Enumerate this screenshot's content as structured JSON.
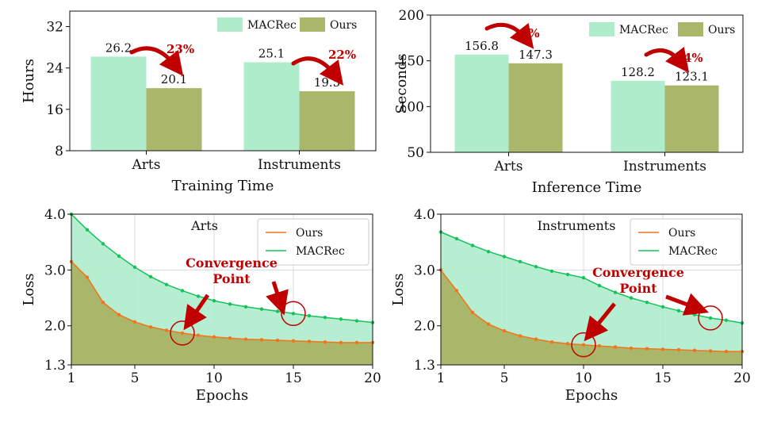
{
  "colors": {
    "macrec_fill": "#aeeccc",
    "ours_fill": "#aab66a",
    "macrec_line": "#16c25a",
    "ours_line": "#f4741b",
    "accent_red": "#c00000",
    "grid": "#dcdcdc"
  },
  "chart_data": [
    {
      "id": "training",
      "type": "bar",
      "title": "",
      "xlabel": "Training Time",
      "ylabel": "Hours",
      "categories": [
        "Arts",
        "Instruments"
      ],
      "series": [
        {
          "name": "MACRec",
          "values": [
            26.2,
            25.1
          ],
          "labels": [
            "26.2",
            "25.1"
          ]
        },
        {
          "name": "Ours",
          "values": [
            20.1,
            19.5
          ],
          "labels": [
            "20.1",
            "19.5"
          ]
        }
      ],
      "annotations": [
        "23%",
        "22%"
      ],
      "ylim": [
        8,
        35
      ],
      "yticks": [
        8,
        16,
        24,
        32
      ],
      "legend": "top-right",
      "grid": false
    },
    {
      "id": "inference",
      "type": "bar",
      "title": "",
      "xlabel": "Inference Time",
      "ylabel": "Seconds",
      "categories": [
        "Arts",
        "Instruments"
      ],
      "series": [
        {
          "name": "MACRec",
          "values": [
            156.8,
            128.2
          ],
          "labels": [
            "156.8",
            "128.2"
          ]
        },
        {
          "name": "Ours",
          "values": [
            147.3,
            123.1
          ],
          "labels": [
            "147.3",
            "123.1"
          ]
        }
      ],
      "annotations": [
        "6%",
        "4%"
      ],
      "ylim": [
        50,
        200
      ],
      "yticks": [
        50,
        100,
        150,
        200
      ],
      "legend": "top-right",
      "grid": false
    },
    {
      "id": "loss_arts",
      "type": "area",
      "title": "Arts",
      "xlabel": "Epochs",
      "ylabel": "Loss",
      "x": [
        1,
        2,
        3,
        4,
        5,
        6,
        7,
        8,
        9,
        10,
        11,
        12,
        13,
        14,
        15,
        16,
        17,
        18,
        19,
        20
      ],
      "series": [
        {
          "name": "Ours",
          "values": [
            3.15,
            2.87,
            2.42,
            2.2,
            2.07,
            1.98,
            1.92,
            1.87,
            1.83,
            1.8,
            1.78,
            1.76,
            1.75,
            1.74,
            1.73,
            1.72,
            1.71,
            1.7,
            1.7,
            1.7
          ]
        },
        {
          "name": "MACRec",
          "values": [
            4.0,
            3.72,
            3.47,
            3.25,
            3.05,
            2.88,
            2.74,
            2.63,
            2.53,
            2.45,
            2.39,
            2.34,
            2.3,
            2.26,
            2.22,
            2.18,
            2.15,
            2.12,
            2.09,
            2.06
          ]
        }
      ],
      "annotation": "Convergence Point",
      "convergence_epochs": {
        "Ours": 8,
        "MACRec": 15
      },
      "xlim": [
        1,
        20
      ],
      "xticks": [
        1,
        5,
        10,
        15,
        20
      ],
      "ylim": [
        1.3,
        4.0
      ],
      "yticks": [
        1.3,
        2.0,
        3.0,
        4.0
      ],
      "ytick_labels": [
        "1.3",
        "2.0",
        "3.0",
        "4.0"
      ],
      "legend": "top-right",
      "grid": true
    },
    {
      "id": "loss_instruments",
      "type": "area",
      "title": "Instruments",
      "xlabel": "Epochs",
      "ylabel": "Loss",
      "x": [
        1,
        2,
        3,
        4,
        5,
        6,
        7,
        8,
        9,
        10,
        11,
        12,
        13,
        14,
        15,
        16,
        17,
        18,
        19,
        20
      ],
      "series": [
        {
          "name": "Ours",
          "values": [
            3.0,
            2.63,
            2.24,
            2.03,
            1.91,
            1.82,
            1.76,
            1.71,
            1.68,
            1.66,
            1.64,
            1.62,
            1.6,
            1.59,
            1.58,
            1.57,
            1.56,
            1.55,
            1.54,
            1.54
          ]
        },
        {
          "name": "MACRec",
          "values": [
            3.68,
            3.56,
            3.44,
            3.33,
            3.24,
            3.15,
            3.06,
            2.98,
            2.92,
            2.86,
            2.72,
            2.6,
            2.5,
            2.42,
            2.34,
            2.27,
            2.2,
            2.14,
            2.1,
            2.05
          ]
        }
      ],
      "annotation": "Convergence Point",
      "convergence_epochs": {
        "Ours": 10,
        "MACRec": 18
      },
      "xlim": [
        1,
        20
      ],
      "xticks": [
        1,
        5,
        10,
        15,
        20
      ],
      "ylim": [
        1.3,
        4.0
      ],
      "yticks": [
        1.3,
        2.0,
        3.0,
        4.0
      ],
      "ytick_labels": [
        "1.3",
        "2.0",
        "3.0",
        "4.0"
      ],
      "legend": "top-right",
      "grid": true
    }
  ]
}
